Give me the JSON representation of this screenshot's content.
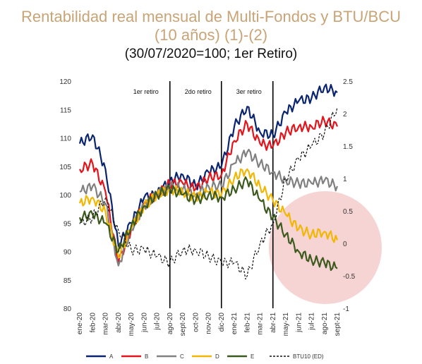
{
  "title_line1": "Rentabilidad real mensual de Multi-Fondos y BTU/BCU",
  "title_line2": "(10 años) (1)-(2)",
  "subtitle": "(30/07/2020=100; 1er Retiro)",
  "colors": {
    "A": "#0b2470",
    "B": "#e3141b",
    "C": "#808080",
    "D": "#f2b705",
    "E": "#3c5a1e",
    "BTU": "#111111",
    "highlight": "#f0b7b7"
  },
  "chart_data": {
    "type": "line",
    "x": [
      "ene-20",
      "feb-20",
      "mar-20",
      "abr-20",
      "may-20",
      "jun-20",
      "jul-20",
      "ago-20",
      "sept-20",
      "oct-20",
      "nov-20",
      "dic-20",
      "ene-21",
      "feb-21",
      "mar-21",
      "abr-21",
      "may-21",
      "jun-21",
      "jul-21",
      "ago-21",
      "sept-21"
    ],
    "xlabels": [
      "ene-20",
      "feb-20",
      "mar-20",
      "abr-20",
      "may-20",
      "jun-20",
      "jul-20",
      "ago-20",
      "sept-20",
      "oct-20",
      "nov-20",
      "dic-20",
      "ene-21",
      "feb-21",
      "mar-21",
      "abr-21",
      "may-21",
      "jun-21",
      "jul-21",
      "ago-21",
      "sept-21"
    ],
    "series": [
      {
        "name": "A",
        "axis": "left",
        "color": "#0b2470",
        "values": [
          109.0,
          110.5,
          104.5,
          91.0,
          95.0,
          99.5,
          100.0,
          102.5,
          103.5,
          101.5,
          104.0,
          105.0,
          112.0,
          115.5,
          111.0,
          110.5,
          114.5,
          116.5,
          117.0,
          119.0,
          118.0
        ]
      },
      {
        "name": "B",
        "axis": "left",
        "color": "#e3141b",
        "values": [
          104.5,
          105.5,
          100.5,
          88.0,
          94.0,
          98.5,
          100.0,
          102.0,
          102.0,
          101.0,
          103.0,
          103.5,
          109.5,
          112.5,
          109.0,
          108.5,
          111.0,
          112.0,
          112.0,
          113.0,
          112.0
        ]
      },
      {
        "name": "C",
        "axis": "left",
        "color": "#808080",
        "values": [
          100.5,
          101.5,
          98.5,
          87.5,
          94.0,
          98.0,
          100.0,
          101.5,
          101.0,
          100.0,
          101.5,
          101.5,
          105.5,
          107.5,
          105.5,
          104.0,
          102.5,
          102.0,
          102.0,
          102.5,
          101.5
        ]
      },
      {
        "name": "D",
        "axis": "left",
        "color": "#f2b705",
        "values": [
          98.5,
          99.5,
          97.0,
          89.0,
          94.0,
          98.0,
          100.0,
          101.0,
          100.5,
          99.5,
          100.5,
          100.0,
          103.0,
          104.5,
          101.5,
          99.0,
          96.5,
          94.0,
          93.0,
          93.5,
          92.0
        ]
      },
      {
        "name": "E",
        "axis": "left",
        "color": "#3c5a1e",
        "values": [
          96.0,
          96.5,
          95.0,
          90.0,
          94.5,
          98.0,
          100.0,
          101.0,
          100.0,
          99.0,
          100.0,
          99.5,
          101.0,
          102.5,
          99.0,
          96.0,
          93.0,
          90.0,
          88.5,
          88.0,
          87.0
        ]
      },
      {
        "name": "BTU10 (ED)",
        "axis": "right",
        "color": "#111111",
        "dashed": true,
        "values": [
          0.3,
          0.4,
          0.7,
          0.2,
          -0.1,
          -0.1,
          -0.2,
          -0.3,
          -0.1,
          -0.1,
          -0.2,
          -0.3,
          -0.3,
          -0.5,
          0.0,
          0.3,
          1.0,
          1.3,
          1.5,
          1.7,
          2.1
        ]
      }
    ],
    "ylim": [
      80,
      120
    ],
    "yticks": [
      "80",
      "85",
      "90",
      "95",
      "100",
      "105",
      "110",
      "115",
      "120"
    ],
    "y2lim": [
      -1,
      2.5
    ],
    "y2ticks": [
      "-1",
      "-0.5",
      "0",
      "0.5",
      "1",
      "1.5",
      "2",
      "2.5"
    ],
    "vlines": [
      {
        "x": "ago-20",
        "label": "1er retiro"
      },
      {
        "x": "dic-20",
        "label": "2do retiro"
      },
      {
        "x": "abr-21",
        "label": "3er retiro"
      }
    ],
    "annotations": [
      "1er retiro",
      "2do retiro",
      "3er retiro"
    ],
    "legend": [
      "A",
      "B",
      "C",
      "D",
      "E",
      "BTU10 (ED)"
    ],
    "legend_position": "bottom",
    "grid": false
  }
}
